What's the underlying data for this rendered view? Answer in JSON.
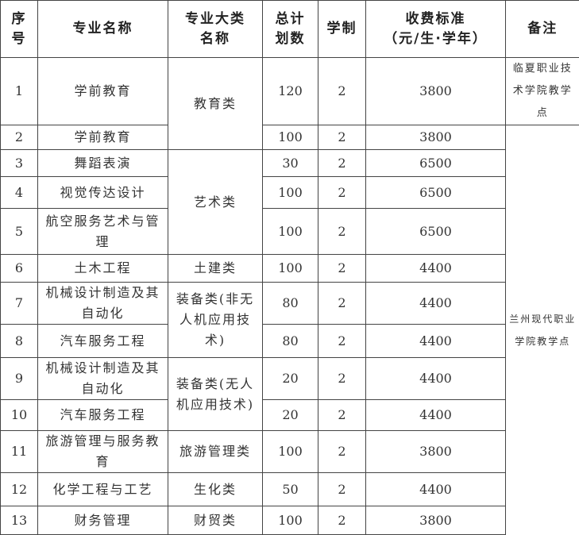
{
  "headers": [
    "序号",
    "专业名称",
    "专业大类名称",
    "总计划数",
    "学制",
    "收费标准（元/生·学年）",
    "备注"
  ],
  "header_lines": {
    "seq": [
      "序",
      "号"
    ],
    "cat": [
      "专业大类",
      "名称"
    ],
    "plan": [
      "总计",
      "划数"
    ],
    "fee": [
      "收费标准",
      "（元/生·学年）"
    ]
  },
  "rows": [
    {
      "no": "1",
      "major": "学前教育",
      "plan": "120",
      "years": "2",
      "fee": "3800"
    },
    {
      "no": "2",
      "major": "学前教育",
      "plan": "100",
      "years": "2",
      "fee": "3800"
    },
    {
      "no": "3",
      "major": "舞蹈表演",
      "plan": "30",
      "years": "2",
      "fee": "6500"
    },
    {
      "no": "4",
      "major": "视觉传达设计",
      "plan": "100",
      "years": "2",
      "fee": "6500"
    },
    {
      "no": "5",
      "major": "航空服务艺术与管理",
      "plan": "100",
      "years": "2",
      "fee": "6500"
    },
    {
      "no": "6",
      "major": "土木工程",
      "plan": "100",
      "years": "2",
      "fee": "4400"
    },
    {
      "no": "7",
      "major": "机械设计制造及其自动化",
      "plan": "80",
      "years": "2",
      "fee": "4400"
    },
    {
      "no": "8",
      "major": "汽车服务工程",
      "plan": "80",
      "years": "2",
      "fee": "4400"
    },
    {
      "no": "9",
      "major": "机械设计制造及其自动化",
      "plan": "20",
      "years": "2",
      "fee": "4400"
    },
    {
      "no": "10",
      "major": "汽车服务工程",
      "plan": "20",
      "years": "2",
      "fee": "4400"
    },
    {
      "no": "11",
      "major": "旅游管理与服务教育",
      "plan": "100",
      "years": "2",
      "fee": "3800"
    },
    {
      "no": "12",
      "major": "化学工程与工艺",
      "plan": "50",
      "years": "2",
      "fee": "4400"
    },
    {
      "no": "13",
      "major": "财务管理",
      "plan": "100",
      "years": "2",
      "fee": "3800"
    }
  ],
  "categories": [
    "教育类",
    "艺术类",
    "土建类",
    "装备类(非无人机应用技术)",
    "装备类(无人机应用技术)",
    "旅游管理类",
    "生化类",
    "财贸类"
  ],
  "notes": [
    "临夏职业技术学院教学点",
    "兰州现代职业学院教学点"
  ]
}
